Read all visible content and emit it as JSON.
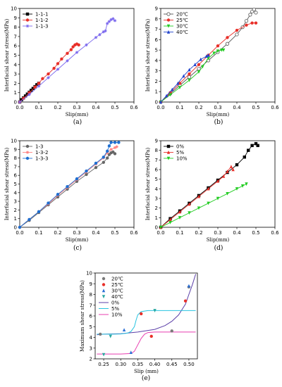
{
  "chart_data": [
    {
      "type": "line",
      "caption": "(a)",
      "xlabel": "Slip(mm)",
      "ylabel": "Interfacial shear stress(MPa)",
      "xlim": [
        0,
        0.6
      ],
      "ylim": [
        0,
        10
      ],
      "xticks": [
        "0.0",
        "0.1",
        "0.2",
        "0.3",
        "0.4",
        "0.5",
        "0.6"
      ],
      "yticks": [
        "0",
        "1",
        "2",
        "3",
        "4",
        "5",
        "6",
        "7",
        "8",
        "9",
        "10"
      ],
      "legend_position": "top-left",
      "series": [
        {
          "name": "1-1-1",
          "color": "#000000",
          "marker": "square",
          "x": [
            0,
            0.01,
            0.02,
            0.03,
            0.04,
            0.05,
            0.06,
            0.07,
            0.08,
            0.09,
            0.1
          ],
          "y": [
            0,
            0.25,
            0.45,
            0.65,
            0.85,
            1.05,
            1.25,
            1.45,
            1.65,
            1.85,
            2.0
          ]
        },
        {
          "name": "1-1-2",
          "color": "#e8302a",
          "marker": "circle",
          "x": [
            0,
            0.02,
            0.05,
            0.08,
            0.1,
            0.12,
            0.15,
            0.18,
            0.2,
            0.22,
            0.25,
            0.27,
            0.28,
            0.29,
            0.3,
            0.31
          ],
          "y": [
            0,
            0.4,
            1.0,
            1.6,
            2.0,
            2.5,
            3.0,
            3.6,
            4.1,
            4.6,
            5.2,
            5.6,
            5.9,
            6.1,
            6.2,
            6.1
          ]
        },
        {
          "name": "1-1-3",
          "color": "#7b68ee",
          "marker": "star",
          "x": [
            0,
            0.05,
            0.1,
            0.15,
            0.2,
            0.25,
            0.3,
            0.35,
            0.4,
            0.42,
            0.44,
            0.45,
            0.46,
            0.47,
            0.48,
            0.49,
            0.5
          ],
          "y": [
            0,
            0.8,
            1.7,
            2.6,
            3.5,
            4.4,
            5.3,
            6.1,
            6.9,
            7.2,
            7.5,
            7.6,
            8.4,
            8.6,
            8.8,
            8.9,
            8.7
          ]
        }
      ]
    },
    {
      "type": "line",
      "caption": "(b)",
      "xlabel": "Slip(mm)",
      "ylabel": "Interfacial  shear stress(MPa)",
      "xlim": [
        0,
        0.6
      ],
      "ylim": [
        0,
        9
      ],
      "xticks": [
        "0.0",
        "0.1",
        "0.2",
        "0.3",
        "0.4",
        "0.5",
        "0.6"
      ],
      "yticks": [
        "0",
        "1",
        "2",
        "3",
        "4",
        "5",
        "6",
        "7",
        "8",
        "9"
      ],
      "legend_position": "top-left",
      "series": [
        {
          "name": "20℃",
          "color": "#555555",
          "marker": "open-circle",
          "x": [
            0,
            0.05,
            0.1,
            0.15,
            0.2,
            0.25,
            0.3,
            0.35,
            0.4,
            0.43,
            0.45,
            0.47,
            0.48,
            0.49,
            0.5
          ],
          "y": [
            0,
            0.8,
            1.6,
            2.4,
            3.2,
            4.0,
            4.8,
            5.6,
            6.5,
            7.2,
            7.8,
            8.4,
            8.7,
            8.9,
            8.6
          ]
        },
        {
          "name": "25℃",
          "color": "#e8302a",
          "marker": "circle",
          "x": [
            0,
            0.05,
            0.1,
            0.15,
            0.2,
            0.25,
            0.3,
            0.35,
            0.4,
            0.45,
            0.48,
            0.5
          ],
          "y": [
            0,
            0.9,
            1.8,
            2.7,
            3.6,
            4.5,
            5.4,
            6.2,
            6.9,
            7.4,
            7.6,
            7.6
          ]
        },
        {
          "name": "30℃",
          "color": "#22cc22",
          "marker": "triangle-down",
          "x": [
            0,
            0.05,
            0.1,
            0.15,
            0.2,
            0.22,
            0.25,
            0.28,
            0.3,
            0.32,
            0.33
          ],
          "y": [
            0,
            0.7,
            1.4,
            2.1,
            2.9,
            3.4,
            4.2,
            4.7,
            4.9,
            5.0,
            5.0
          ]
        },
        {
          "name": "40℃",
          "color": "#2244cc",
          "marker": "triangle",
          "x": [
            0,
            0.03,
            0.06,
            0.09,
            0.12,
            0.15,
            0.18,
            0.21,
            0.24,
            0.25
          ],
          "y": [
            0,
            0.6,
            1.2,
            1.8,
            2.5,
            3.1,
            3.6,
            4.1,
            4.4,
            4.5
          ]
        }
      ]
    },
    {
      "type": "line",
      "caption": "(c)",
      "xlabel": "Slip(mm)",
      "ylabel": "Interfacial shear stress(MPa)",
      "xlim": [
        0,
        0.6
      ],
      "ylim": [
        0,
        10
      ],
      "xticks": [
        "0.0",
        "0.1",
        "0.2",
        "0.3",
        "0.4",
        "0.5",
        "0.6"
      ],
      "yticks": [
        "0",
        "1",
        "2",
        "3",
        "4",
        "5",
        "6",
        "7",
        "8",
        "9",
        "10"
      ],
      "legend_position": "top-left",
      "series": [
        {
          "name": "1-3",
          "color": "#666666",
          "marker": "circle",
          "x": [
            0,
            0.05,
            0.1,
            0.15,
            0.2,
            0.25,
            0.3,
            0.35,
            0.4,
            0.44,
            0.46,
            0.47,
            0.48,
            0.49,
            0.5
          ],
          "y": [
            0,
            0.8,
            1.7,
            2.6,
            3.5,
            4.4,
            5.3,
            6.1,
            6.9,
            7.5,
            8.0,
            8.4,
            8.6,
            8.7,
            8.5
          ]
        },
        {
          "name": "1-3-2",
          "color": "#ff8080",
          "marker": "star",
          "x": [
            0,
            0.05,
            0.1,
            0.15,
            0.2,
            0.25,
            0.3,
            0.35,
            0.4,
            0.44,
            0.46,
            0.48,
            0.5,
            0.51
          ],
          "y": [
            0,
            0.9,
            1.8,
            2.7,
            3.7,
            4.6,
            5.5,
            6.4,
            7.3,
            8.0,
            8.6,
            9.0,
            9.2,
            9.3
          ]
        },
        {
          "name": "1-3-3",
          "color": "#1f6fd1",
          "marker": "circle",
          "x": [
            0,
            0.05,
            0.1,
            0.15,
            0.2,
            0.25,
            0.3,
            0.35,
            0.4,
            0.44,
            0.46,
            0.47,
            0.48,
            0.5,
            0.52
          ],
          "y": [
            0,
            0.9,
            1.8,
            2.8,
            3.8,
            4.7,
            5.6,
            6.5,
            7.4,
            8.1,
            8.8,
            9.4,
            9.8,
            9.8,
            9.8
          ]
        }
      ]
    },
    {
      "type": "line",
      "caption": "(d)",
      "xlabel": "Slip(mm)",
      "ylabel": "Interfacial shear stress(MPa)",
      "xlim": [
        0,
        0.6
      ],
      "ylim": [
        0,
        9
      ],
      "xticks": [
        "0.0",
        "0.1",
        "0.2",
        "0.3",
        "0.4",
        "0.5",
        "0.6"
      ],
      "yticks": [
        "0",
        "1",
        "2",
        "3",
        "4",
        "5",
        "6",
        "7",
        "8",
        "9"
      ],
      "legend_position": "top-left",
      "series": [
        {
          "name": "0%",
          "color": "#000000",
          "marker": "square",
          "x": [
            0,
            0.05,
            0.1,
            0.15,
            0.2,
            0.25,
            0.3,
            0.35,
            0.4,
            0.44,
            0.46,
            0.48,
            0.5,
            0.51
          ],
          "y": [
            0,
            0.9,
            1.7,
            2.5,
            3.3,
            4.1,
            4.9,
            5.7,
            6.5,
            7.3,
            8.0,
            8.5,
            8.7,
            8.5
          ]
        },
        {
          "name": "5%",
          "color": "#e8302a",
          "marker": "triangle",
          "x": [
            0,
            0.05,
            0.1,
            0.15,
            0.2,
            0.25,
            0.3,
            0.33,
            0.35,
            0.37,
            0.38
          ],
          "y": [
            0,
            0.8,
            1.6,
            2.4,
            3.2,
            4.0,
            4.8,
            5.3,
            5.8,
            6.3,
            6.0
          ]
        },
        {
          "name": "10%",
          "color": "#22cc22",
          "marker": "triangle-down",
          "x": [
            0,
            0.05,
            0.1,
            0.15,
            0.2,
            0.25,
            0.3,
            0.35,
            0.4,
            0.43,
            0.45
          ],
          "y": [
            0,
            0.5,
            1.0,
            1.5,
            2.0,
            2.5,
            3.0,
            3.5,
            4.0,
            4.3,
            4.5
          ]
        }
      ]
    },
    {
      "type": "scatter",
      "caption": "(e)",
      "xlabel": "Slip (mm)",
      "ylabel": "Maximum shear stress(MPa)",
      "xlim": [
        0.225,
        0.525
      ],
      "ylim": [
        2,
        10
      ],
      "xticks": [
        "0.25",
        "0.30",
        "0.35",
        "0.40",
        "0.45",
        "0.50"
      ],
      "yticks": [
        "2",
        "3",
        "4",
        "5",
        "6",
        "7",
        "8",
        "9",
        "10"
      ],
      "legend_position": "top-left",
      "series": [
        {
          "name": "20℃",
          "color": "#7a7a7a",
          "marker": "circle",
          "x": [
            0.24,
            0.45,
            0.5
          ],
          "y": [
            4.3,
            4.6,
            8.7
          ]
        },
        {
          "name": "25℃",
          "color": "#e8302a",
          "marker": "circle",
          "x": [
            0.36,
            0.39,
            0.49
          ],
          "y": [
            6.2,
            4.1,
            7.4
          ]
        },
        {
          "name": "30℃",
          "color": "#2b6fd6",
          "marker": "triangle",
          "x": [
            0.31,
            0.33,
            0.5
          ],
          "y": [
            4.7,
            2.6,
            8.8
          ]
        },
        {
          "name": "40℃",
          "color": "#2aa8a0",
          "marker": "triangle-down",
          "x": [
            0.27,
            0.25,
            0.4
          ],
          "y": [
            4.1,
            2.4,
            6.5
          ]
        }
      ],
      "fits": [
        {
          "name": "0%",
          "color": "#5b3fa8",
          "x": [
            0.23,
            0.25,
            0.3,
            0.35,
            0.4,
            0.43,
            0.45,
            0.47,
            0.49,
            0.5,
            0.51,
            0.52
          ],
          "y": [
            4.25,
            4.3,
            4.35,
            4.5,
            4.75,
            5.1,
            5.5,
            6.1,
            7.1,
            8.0,
            8.9,
            9.9
          ]
        },
        {
          "name": "5%",
          "color": "#27c4e0",
          "x": [
            0.23,
            0.28,
            0.3,
            0.32,
            0.33,
            0.34,
            0.345,
            0.35,
            0.36,
            0.38,
            0.4,
            0.45,
            0.52
          ],
          "y": [
            4.3,
            4.3,
            4.32,
            4.4,
            4.55,
            5.0,
            5.6,
            6.1,
            6.4,
            6.5,
            6.5,
            6.5,
            6.5
          ]
        },
        {
          "name": "10%",
          "color": "#e83fb0",
          "x": [
            0.23,
            0.3,
            0.33,
            0.34,
            0.35,
            0.36,
            0.37,
            0.38,
            0.4,
            0.45,
            0.52
          ],
          "y": [
            2.45,
            2.45,
            2.5,
            2.7,
            3.3,
            3.9,
            4.3,
            4.45,
            4.5,
            4.5,
            4.5
          ]
        }
      ]
    }
  ]
}
